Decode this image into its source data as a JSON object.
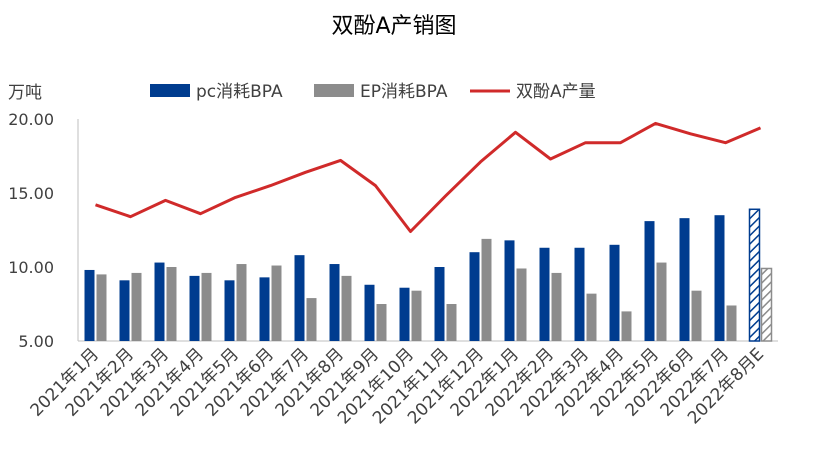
{
  "chart_data": {
    "type": "bar",
    "title": "双酚A产销图",
    "unit_label": "万吨",
    "ylim": [
      5,
      20
    ],
    "yticks": [
      "5.00",
      "10.00",
      "15.00",
      "20.00"
    ],
    "grid": false,
    "legend_position": "top",
    "categories": [
      "2021年1月",
      "2021年2月",
      "2021年3月",
      "2021年4月",
      "2021年5月",
      "2021年6月",
      "2021年7月",
      "2021年8月",
      "2021年9月",
      "2021年10月",
      "2021年11月",
      "2021年12月",
      "2022年1月",
      "2022年2月",
      "2022年3月",
      "2022年4月",
      "2022年5月",
      "2022年6月",
      "2022年7月",
      "2022年8月E"
    ],
    "series": [
      {
        "name": "pc消耗BPA",
        "type": "bar",
        "color": "#003c8f",
        "values": [
          9.8,
          9.1,
          10.3,
          9.4,
          9.1,
          9.3,
          10.8,
          10.2,
          8.8,
          8.6,
          10.0,
          11.0,
          11.8,
          11.3,
          11.3,
          11.5,
          13.1,
          13.3,
          13.5,
          13.9
        ]
      },
      {
        "name": "EP消耗BPA",
        "type": "bar",
        "color": "#8c8c8c",
        "values": [
          9.5,
          9.6,
          10.0,
          9.6,
          10.2,
          10.1,
          7.9,
          9.4,
          7.5,
          8.4,
          7.5,
          11.9,
          9.9,
          9.6,
          8.2,
          7.0,
          10.3,
          8.4,
          7.4,
          9.9
        ]
      },
      {
        "name": "双酚A产量",
        "type": "line",
        "color": "#d02a2a",
        "values": [
          14.2,
          13.4,
          14.5,
          13.6,
          14.7,
          15.5,
          16.4,
          17.2,
          15.5,
          12.4,
          14.8,
          17.1,
          19.1,
          17.3,
          18.4,
          18.4,
          19.7,
          19.0,
          18.4,
          19.4
        ]
      }
    ],
    "estimated_last_category": "2022年8月E"
  }
}
